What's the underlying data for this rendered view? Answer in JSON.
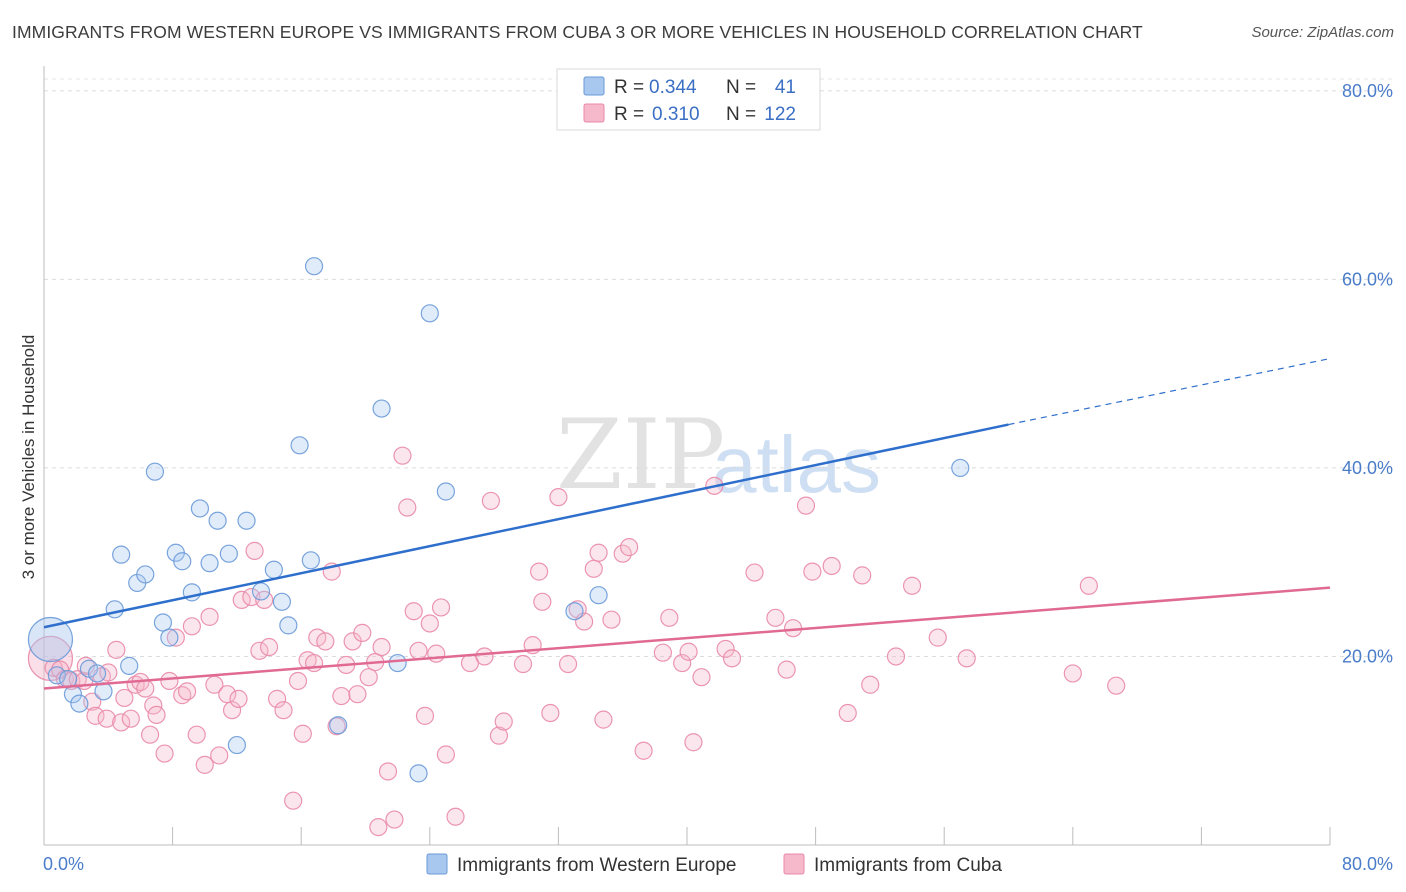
{
  "title": "IMMIGRANTS FROM WESTERN EUROPE VS IMMIGRANTS FROM CUBA 3 OR MORE VEHICLES IN HOUSEHOLD CORRELATION CHART",
  "source": "Source: ZipAtlas.com",
  "watermark": {
    "zip": "ZIP",
    "atlas": "atlas"
  },
  "colors": {
    "blue_fill": "#a9c8f0",
    "blue_stroke": "#6a9ad8",
    "blue_line": "#2f6fcc",
    "pink_fill": "#f6b8cb",
    "pink_stroke": "#e98aa8",
    "pink_line": "#e06a93"
  },
  "legend": {
    "rows": [
      {
        "r_label": "R =",
        "r_value": "0.344",
        "n_label": "N =",
        "n_value": "41"
      },
      {
        "r_label": "R =",
        "r_value": "0.310",
        "n_label": "N =",
        "n_value": "122"
      }
    ]
  },
  "chart_data": {
    "type": "scatter",
    "title": "IMMIGRANTS FROM WESTERN EUROPE VS IMMIGRANTS FROM CUBA 3 OR MORE VEHICLES IN HOUSEHOLD CORRELATION CHART",
    "xlabel": "",
    "ylabel": "3 or more Vehicles in Household",
    "xlim": [
      0,
      80
    ],
    "ylim": [
      0,
      82
    ],
    "x_tick_labels": [
      "0.0%",
      "80.0%"
    ],
    "y_ticks": [
      20,
      40,
      60,
      80
    ],
    "y_tick_labels": [
      "20.0%",
      "40.0%",
      "60.0%",
      "80.0%"
    ],
    "grid": true,
    "legend_position": "bottom",
    "series": [
      {
        "name": "Immigrants from Western Europe",
        "trend": {
          "x_start": 0,
          "y_start": 23.1,
          "x_solid_end": 60,
          "y_solid_end": 44.6,
          "x_end": 80,
          "y_end": 51.6
        },
        "points": [
          {
            "x": 0.4,
            "y": 21.8,
            "large": true
          },
          {
            "x": 0.8,
            "y": 18.0
          },
          {
            "x": 1.5,
            "y": 17.6
          },
          {
            "x": 1.8,
            "y": 16.0
          },
          {
            "x": 2.2,
            "y": 15.0
          },
          {
            "x": 2.8,
            "y": 18.7
          },
          {
            "x": 3.3,
            "y": 18.2
          },
          {
            "x": 3.7,
            "y": 16.3
          },
          {
            "x": 4.4,
            "y": 25.0
          },
          {
            "x": 4.8,
            "y": 30.8
          },
          {
            "x": 5.3,
            "y": 19.0
          },
          {
            "x": 5.8,
            "y": 27.8
          },
          {
            "x": 6.3,
            "y": 28.7
          },
          {
            "x": 6.9,
            "y": 39.6
          },
          {
            "x": 7.4,
            "y": 23.6
          },
          {
            "x": 7.8,
            "y": 22.0
          },
          {
            "x": 8.2,
            "y": 31.0
          },
          {
            "x": 8.6,
            "y": 30.1
          },
          {
            "x": 9.2,
            "y": 26.8
          },
          {
            "x": 9.7,
            "y": 35.7
          },
          {
            "x": 10.3,
            "y": 29.9
          },
          {
            "x": 10.8,
            "y": 34.4
          },
          {
            "x": 11.5,
            "y": 30.9
          },
          {
            "x": 12.0,
            "y": 10.6
          },
          {
            "x": 12.6,
            "y": 34.4
          },
          {
            "x": 13.5,
            "y": 26.9
          },
          {
            "x": 14.3,
            "y": 29.2
          },
          {
            "x": 14.8,
            "y": 25.8
          },
          {
            "x": 15.2,
            "y": 23.3
          },
          {
            "x": 15.9,
            "y": 42.4
          },
          {
            "x": 16.6,
            "y": 30.2
          },
          {
            "x": 16.8,
            "y": 61.4
          },
          {
            "x": 18.3,
            "y": 12.7
          },
          {
            "x": 21.0,
            "y": 46.3
          },
          {
            "x": 22.0,
            "y": 19.3
          },
          {
            "x": 23.3,
            "y": 7.6
          },
          {
            "x": 24.0,
            "y": 56.4
          },
          {
            "x": 25.0,
            "y": 37.5
          },
          {
            "x": 33.0,
            "y": 24.8
          },
          {
            "x": 34.5,
            "y": 26.5
          },
          {
            "x": 57.0,
            "y": 40.0
          }
        ]
      },
      {
        "name": "Immigrants from Cuba",
        "trend": {
          "x_start": 0,
          "y_start": 16.6,
          "x_end": 80,
          "y_end": 27.3
        },
        "points": [
          {
            "x": 0.4,
            "y": 19.8,
            "large": true
          },
          {
            "x": 0.6,
            "y": 18.8
          },
          {
            "x": 1.0,
            "y": 18.6
          },
          {
            "x": 1.3,
            "y": 17.6
          },
          {
            "x": 1.7,
            "y": 17.4
          },
          {
            "x": 2.1,
            "y": 17.6
          },
          {
            "x": 2.5,
            "y": 17.4
          },
          {
            "x": 2.6,
            "y": 19.0
          },
          {
            "x": 3.0,
            "y": 15.2
          },
          {
            "x": 3.2,
            "y": 13.7
          },
          {
            "x": 3.6,
            "y": 17.9
          },
          {
            "x": 3.9,
            "y": 13.4
          },
          {
            "x": 4.0,
            "y": 18.3
          },
          {
            "x": 4.5,
            "y": 20.7
          },
          {
            "x": 4.8,
            "y": 13.0
          },
          {
            "x": 5.0,
            "y": 15.6
          },
          {
            "x": 5.4,
            "y": 13.4
          },
          {
            "x": 5.7,
            "y": 17.0
          },
          {
            "x": 6.0,
            "y": 17.3
          },
          {
            "x": 6.3,
            "y": 16.6
          },
          {
            "x": 6.6,
            "y": 11.7
          },
          {
            "x": 6.8,
            "y": 14.8
          },
          {
            "x": 7.0,
            "y": 13.8
          },
          {
            "x": 7.5,
            "y": 9.7
          },
          {
            "x": 7.8,
            "y": 17.4
          },
          {
            "x": 8.2,
            "y": 22.0
          },
          {
            "x": 8.6,
            "y": 15.9
          },
          {
            "x": 8.9,
            "y": 16.3
          },
          {
            "x": 9.2,
            "y": 23.2
          },
          {
            "x": 9.5,
            "y": 11.7
          },
          {
            "x": 10.0,
            "y": 8.5
          },
          {
            "x": 10.3,
            "y": 24.2
          },
          {
            "x": 10.6,
            "y": 17.0
          },
          {
            "x": 10.9,
            "y": 9.5
          },
          {
            "x": 11.4,
            "y": 16.0
          },
          {
            "x": 11.7,
            "y": 14.3
          },
          {
            "x": 12.1,
            "y": 15.5
          },
          {
            "x": 12.3,
            "y": 26.0
          },
          {
            "x": 12.9,
            "y": 26.3
          },
          {
            "x": 13.1,
            "y": 31.2
          },
          {
            "x": 13.4,
            "y": 20.6
          },
          {
            "x": 13.7,
            "y": 26.0
          },
          {
            "x": 14.0,
            "y": 21.0
          },
          {
            "x": 14.5,
            "y": 15.5
          },
          {
            "x": 14.9,
            "y": 14.3
          },
          {
            "x": 15.5,
            "y": 4.7
          },
          {
            "x": 15.8,
            "y": 17.4
          },
          {
            "x": 16.1,
            "y": 11.8
          },
          {
            "x": 16.4,
            "y": 19.6
          },
          {
            "x": 16.8,
            "y": 19.3
          },
          {
            "x": 17.0,
            "y": 22.0
          },
          {
            "x": 17.5,
            "y": 21.6
          },
          {
            "x": 17.9,
            "y": 29.0
          },
          {
            "x": 18.2,
            "y": 12.6
          },
          {
            "x": 18.5,
            "y": 15.8
          },
          {
            "x": 18.8,
            "y": 19.1
          },
          {
            "x": 19.2,
            "y": 21.6
          },
          {
            "x": 19.5,
            "y": 16.0
          },
          {
            "x": 19.8,
            "y": 22.5
          },
          {
            "x": 20.2,
            "y": 17.8
          },
          {
            "x": 20.6,
            "y": 19.4
          },
          {
            "x": 20.8,
            "y": 1.9
          },
          {
            "x": 21.0,
            "y": 21.0
          },
          {
            "x": 21.4,
            "y": 7.8
          },
          {
            "x": 21.8,
            "y": 2.7
          },
          {
            "x": 22.3,
            "y": 41.3
          },
          {
            "x": 22.6,
            "y": 35.8
          },
          {
            "x": 23.0,
            "y": 24.8
          },
          {
            "x": 23.3,
            "y": 20.6
          },
          {
            "x": 23.7,
            "y": 13.7
          },
          {
            "x": 24.0,
            "y": 23.5
          },
          {
            "x": 24.4,
            "y": 20.3
          },
          {
            "x": 24.7,
            "y": 25.2
          },
          {
            "x": 25.0,
            "y": 9.6
          },
          {
            "x": 25.6,
            "y": 3.0
          },
          {
            "x": 26.5,
            "y": 19.3
          },
          {
            "x": 27.4,
            "y": 20.0
          },
          {
            "x": 27.8,
            "y": 36.5
          },
          {
            "x": 28.3,
            "y": 11.6
          },
          {
            "x": 28.6,
            "y": 13.1
          },
          {
            "x": 29.8,
            "y": 19.2
          },
          {
            "x": 30.4,
            "y": 21.2
          },
          {
            "x": 30.8,
            "y": 29.0
          },
          {
            "x": 31.0,
            "y": 25.8
          },
          {
            "x": 31.5,
            "y": 14.0
          },
          {
            "x": 32.0,
            "y": 36.9
          },
          {
            "x": 32.6,
            "y": 19.2
          },
          {
            "x": 33.2,
            "y": 25.0
          },
          {
            "x": 33.6,
            "y": 23.7
          },
          {
            "x": 34.2,
            "y": 29.3
          },
          {
            "x": 34.5,
            "y": 31.0
          },
          {
            "x": 34.8,
            "y": 13.3
          },
          {
            "x": 35.3,
            "y": 23.9
          },
          {
            "x": 36.0,
            "y": 30.9
          },
          {
            "x": 36.4,
            "y": 31.6
          },
          {
            "x": 37.3,
            "y": 10.0
          },
          {
            "x": 38.5,
            "y": 20.4
          },
          {
            "x": 38.9,
            "y": 24.1
          },
          {
            "x": 39.7,
            "y": 19.3
          },
          {
            "x": 40.1,
            "y": 20.5
          },
          {
            "x": 40.4,
            "y": 10.9
          },
          {
            "x": 40.9,
            "y": 17.8
          },
          {
            "x": 41.7,
            "y": 38.1
          },
          {
            "x": 42.4,
            "y": 20.8
          },
          {
            "x": 42.8,
            "y": 19.8
          },
          {
            "x": 44.2,
            "y": 28.9
          },
          {
            "x": 45.5,
            "y": 24.1
          },
          {
            "x": 46.2,
            "y": 18.6
          },
          {
            "x": 46.6,
            "y": 23.0
          },
          {
            "x": 47.4,
            "y": 36.0
          },
          {
            "x": 47.8,
            "y": 29.0
          },
          {
            "x": 49.0,
            "y": 29.6
          },
          {
            "x": 50.0,
            "y": 14.0
          },
          {
            "x": 50.9,
            "y": 28.6
          },
          {
            "x": 51.4,
            "y": 17.0
          },
          {
            "x": 53.0,
            "y": 20.0
          },
          {
            "x": 54.0,
            "y": 27.5
          },
          {
            "x": 55.6,
            "y": 22.0
          },
          {
            "x": 57.4,
            "y": 19.8
          },
          {
            "x": 64.0,
            "y": 18.2
          },
          {
            "x": 65.0,
            "y": 27.5
          },
          {
            "x": 66.7,
            "y": 16.9
          }
        ]
      }
    ]
  }
}
